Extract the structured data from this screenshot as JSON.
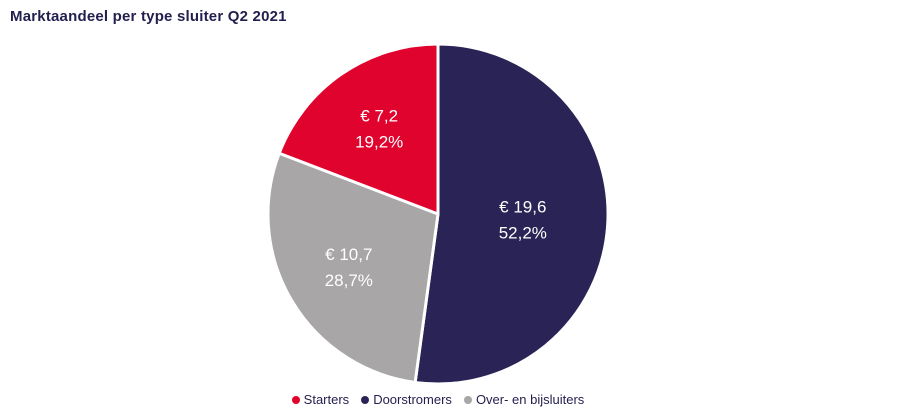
{
  "colors": {
    "title_text": "#221f4e",
    "legend_text": "#221f4e",
    "slice_label_text": "#ffffff",
    "slice_separator": "#ffffff",
    "background": "#ffffff"
  },
  "chart_data": {
    "type": "pie",
    "title": "Marktaandeel per type sluiter Q2 2021",
    "unit": "€ (miljard), %",
    "slices": [
      {
        "name": "Starters",
        "value": 7.2,
        "pct": 19.2,
        "value_eur_label": "€ 7,2",
        "pct_label": "19,2%",
        "color": "#e0032d",
        "label_radius": 0.61
      },
      {
        "name": "Doorstromers",
        "value": 19.6,
        "pct": 52.2,
        "value_eur_label": "€ 19,6",
        "pct_label": "52,2%",
        "color": "#2a2456",
        "label_radius": 0.5
      },
      {
        "name": "Over- en bijsluiters",
        "value": 10.7,
        "pct": 28.7,
        "value_eur_label": "€ 10,7",
        "pct_label": "28,7%",
        "color": "#a8a6a7",
        "label_radius": 0.61
      }
    ],
    "draw_order_clockwise_from_top": [
      "Doorstromers",
      "Over- en bijsluiters",
      "Starters"
    ],
    "start_angle_deg": 0,
    "legend_position": "bottom-center",
    "legend_order": [
      "Starters",
      "Doorstromers",
      "Over- en bijsluiters"
    ]
  }
}
